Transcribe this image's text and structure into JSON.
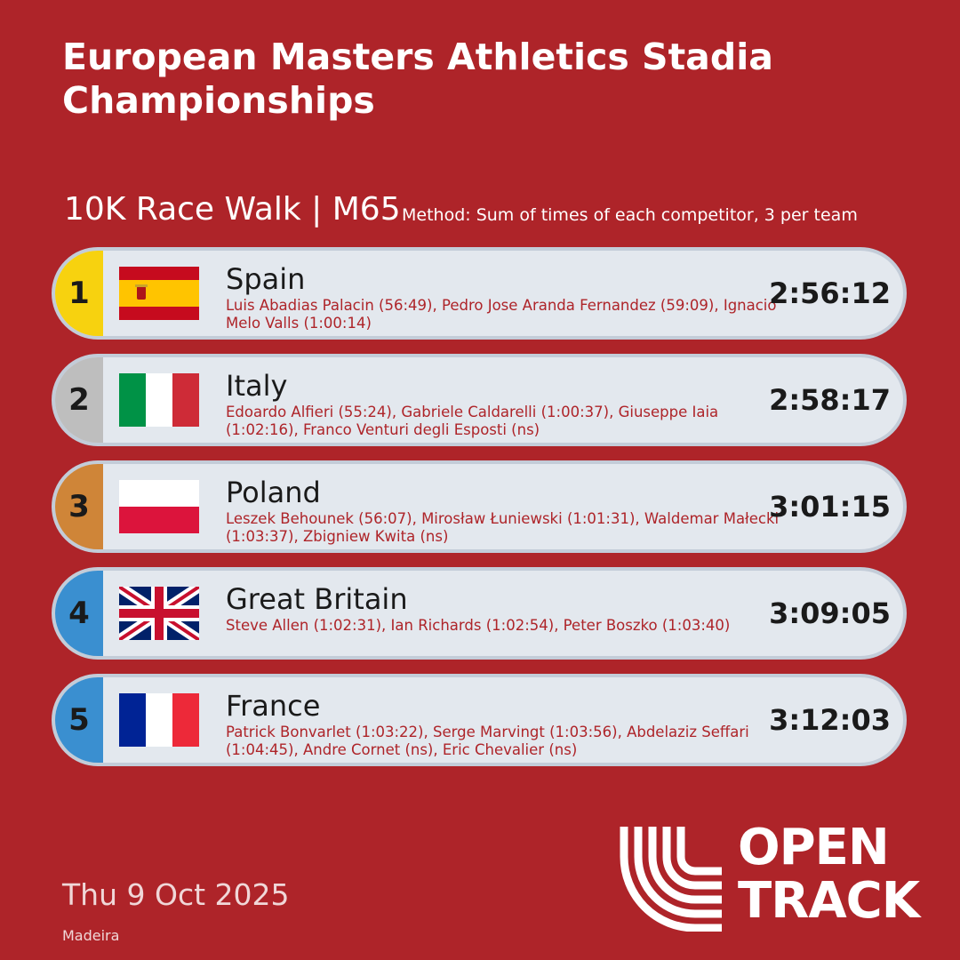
{
  "header": {
    "title": "European Masters Athletics Stadia Championships",
    "event": "10K Race Walk | M65",
    "method": "Method: Sum of times of each competitor, 3 per team"
  },
  "results": [
    {
      "rank": "1",
      "country": "Spain",
      "members": "Luis Abadias Palacin (56:49), Pedro Jose Aranda Fernandez (59:09), Ignacio Melo Valls (1:00:14)",
      "time": "2:56:12",
      "rank_color": "#f7d20f",
      "flag": "spain-flag"
    },
    {
      "rank": "2",
      "country": "Italy",
      "members": "Edoardo Alfieri (55:24), Gabriele Caldarelli (1:00:37), Giuseppe Iaia (1:02:16), Franco Venturi degli Esposti (ns)",
      "time": "2:58:17",
      "rank_color": "#bebebe",
      "flag": "italy-flag"
    },
    {
      "rank": "3",
      "country": "Poland",
      "members": "Leszek Behounek (56:07), Mirosław Łuniewski (1:01:31), Waldemar Małecki (1:03:37), Zbigniew Kwita (ns)",
      "time": "3:01:15",
      "rank_color": "#cf8538",
      "flag": "poland-flag"
    },
    {
      "rank": "4",
      "country": "Great Britain",
      "members": "Steve Allen (1:02:31), Ian Richards (1:02:54), Peter Boszko (1:03:40)",
      "time": "3:09:05",
      "rank_color": "#3a8fd0",
      "flag": "uk-flag"
    },
    {
      "rank": "5",
      "country": "France",
      "members": "Patrick Bonvarlet (1:03:22), Serge Marvingt (1:03:56), Abdelaziz Seffari (1:04:45), Andre Cornet (ns), Eric Chevalier (ns)",
      "time": "3:12:03",
      "rank_color": "#3a8fd0",
      "flag": "france-flag"
    }
  ],
  "footer": {
    "date": "Thu 9 Oct 2025",
    "venue": "Madeira",
    "logo_line1": "OPEN",
    "logo_line2": "TRACK"
  },
  "colors": {
    "background": "#ae2429",
    "row_fill": "#e3e8ee",
    "row_border": "#c3ccd8",
    "members_text": "#ae2429"
  }
}
